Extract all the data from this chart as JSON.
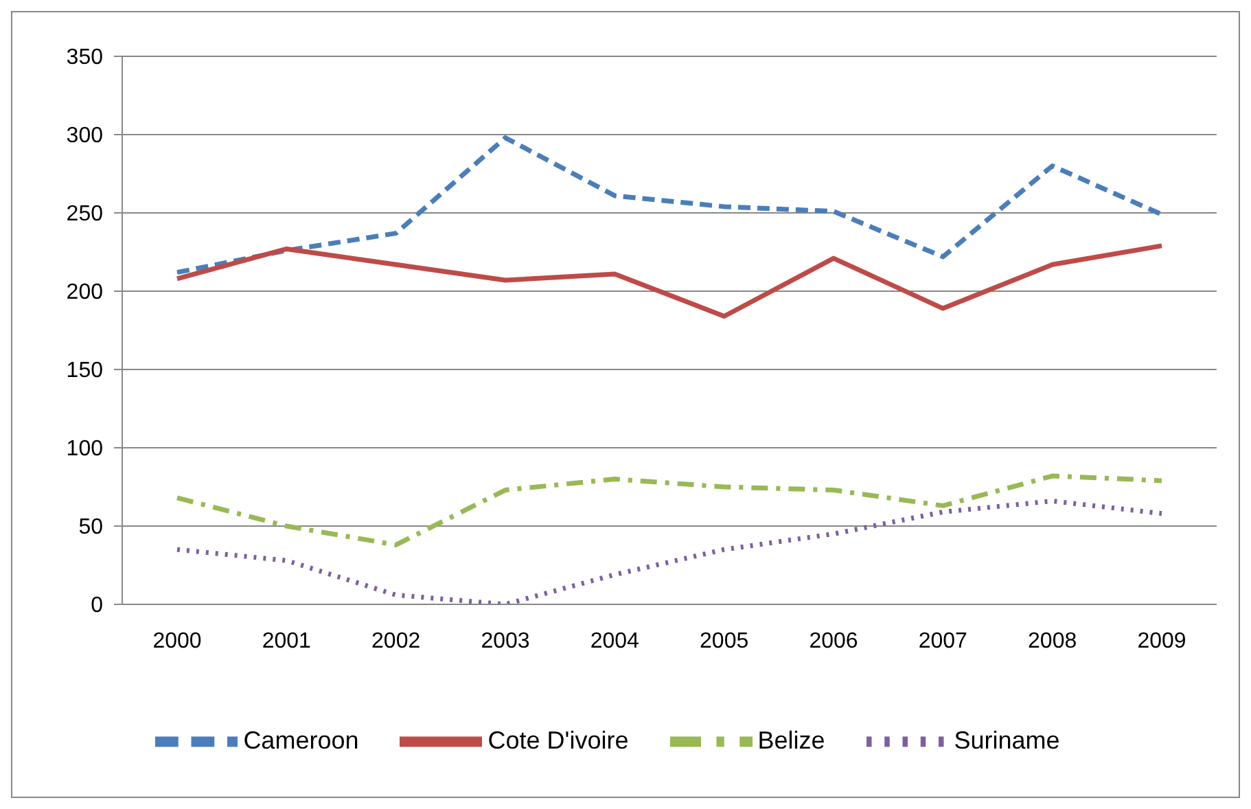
{
  "chart_data": {
    "type": "line",
    "categories": [
      "2000",
      "2001",
      "2002",
      "2003",
      "2004",
      "2005",
      "2006",
      "2007",
      "2008",
      "2009"
    ],
    "series": [
      {
        "name": "Cameroon",
        "color": "#4a7ebb",
        "line_style": "dashed",
        "values": [
          212,
          226,
          237,
          298,
          261,
          254,
          251,
          222,
          280,
          249
        ]
      },
      {
        "name": "Cote D'ivoire",
        "color": "#be4b48",
        "line_style": "solid",
        "values": [
          208,
          227,
          217,
          207,
          211,
          184,
          221,
          189,
          217,
          229
        ]
      },
      {
        "name": "Belize",
        "color": "#98b954",
        "line_style": "dashdot",
        "values": [
          68,
          50,
          38,
          73,
          80,
          75,
          73,
          63,
          82,
          79
        ]
      },
      {
        "name": "Suriname",
        "color": "#7d60a0",
        "line_style": "dotted",
        "values": [
          35,
          28,
          6,
          0,
          19,
          35,
          45,
          59,
          66,
          58
        ]
      }
    ],
    "ylim": [
      0,
      350
    ],
    "yticks": [
      0,
      50,
      100,
      150,
      200,
      250,
      300,
      350
    ],
    "grid": "y",
    "legend": "bottom",
    "marker": "none"
  }
}
